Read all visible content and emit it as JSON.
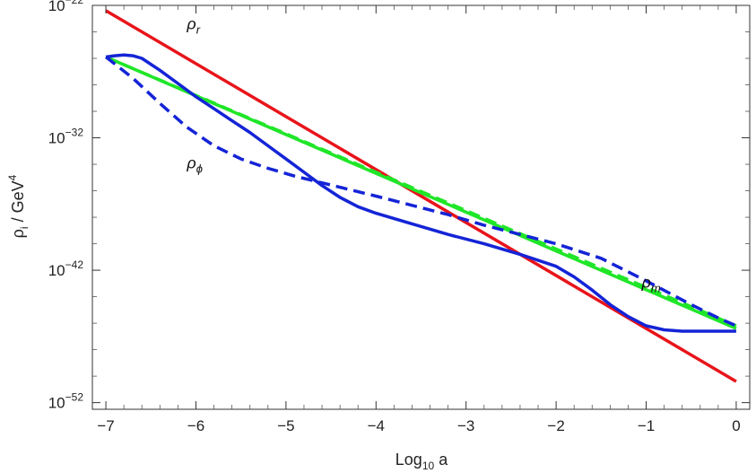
{
  "chart_data": {
    "type": "line",
    "xlabel_main": "Log",
    "xlabel_sub": "10",
    "xlabel_tail": " a",
    "ylabel_main": "ρ",
    "ylabel_sub": "i",
    "ylabel_tail": " / GeV",
    "ylabel_sup": "4",
    "xlim": [
      -7.15,
      0.15
    ],
    "ylim": [
      -52.5,
      -22
    ],
    "x_ticks": [
      -7,
      -6,
      -5,
      -4,
      -3,
      -2,
      -1,
      0
    ],
    "x_tick_labels": [
      "−7",
      "−6",
      "−5",
      "−4",
      "−3",
      "−2",
      "−1",
      "0"
    ],
    "y_ticks": [
      -52,
      -42,
      -32,
      -22
    ],
    "y_tick_base": "10",
    "y_tick_exponents": [
      "−52",
      "−42",
      "−32",
      "−22"
    ],
    "y_scale": "log10",
    "grid": false,
    "annotations": [
      {
        "main": "ρ",
        "sub": "r",
        "x": -6.1,
        "y": -23.8
      },
      {
        "main": "ρ",
        "sub": "ϕ",
        "x": -6.1,
        "y": -34.3
      },
      {
        "main": "ρ",
        "sub": "m",
        "x": -1.05,
        "y": -43.3
      }
    ],
    "series": [
      {
        "key": "rho_r",
        "color": "#e8141b",
        "dash": "solid",
        "x": [
          -7,
          0
        ],
        "y": [
          -22.4,
          -50.4
        ]
      },
      {
        "key": "rho_m_dashed",
        "color": "#1fe628",
        "dash": "dashed",
        "x": [
          -7,
          0
        ],
        "y": [
          -25.9,
          -46.2
        ]
      },
      {
        "key": "rho_m",
        "color": "#1fe628",
        "dash": "solid",
        "x": [
          -7,
          0
        ],
        "y": [
          -25.9,
          -46.4
        ]
      },
      {
        "key": "rho_phi_dashed",
        "color": "#1424d6",
        "dash": "dashed",
        "x": [
          -7,
          -6.7,
          -6.4,
          -6.1,
          -5.8,
          -5.5,
          -5.2,
          -4.9,
          -4.6,
          -4.3,
          -4.0,
          -3.6,
          -3.2,
          -2.8,
          -2.4,
          -2.0,
          -1.5,
          -1.0,
          -0.5,
          -0.2,
          0
        ],
        "y": [
          -25.9,
          -27.5,
          -29.4,
          -31.2,
          -32.6,
          -33.6,
          -34.3,
          -34.9,
          -35.4,
          -35.9,
          -36.4,
          -37.1,
          -37.8,
          -38.6,
          -39.3,
          -40.0,
          -41.1,
          -42.8,
          -44.6,
          -45.6,
          -46.2
        ]
      },
      {
        "key": "rho_phi",
        "color": "#1424d6",
        "dash": "solid",
        "x": [
          -7,
          -6.9,
          -6.8,
          -6.7,
          -6.6,
          -6.4,
          -6.2,
          -6.0,
          -5.8,
          -5.6,
          -5.4,
          -5.2,
          -5.0,
          -4.8,
          -4.6,
          -4.4,
          -4.2,
          -4.0,
          -3.6,
          -3.2,
          -2.8,
          -2.4,
          -2.0,
          -1.8,
          -1.6,
          -1.4,
          -1.2,
          -1.0,
          -0.8,
          -0.6,
          -0.4,
          -0.2,
          0
        ],
        "y": [
          -25.9,
          -25.8,
          -25.75,
          -25.8,
          -26.0,
          -26.9,
          -27.9,
          -28.9,
          -29.8,
          -30.7,
          -31.6,
          -32.6,
          -33.6,
          -34.6,
          -35.6,
          -36.5,
          -37.2,
          -37.7,
          -38.5,
          -39.3,
          -40.0,
          -40.8,
          -41.7,
          -42.5,
          -43.5,
          -44.6,
          -45.5,
          -46.2,
          -46.5,
          -46.6,
          -46.6,
          -46.6,
          -46.6
        ]
      }
    ]
  }
}
